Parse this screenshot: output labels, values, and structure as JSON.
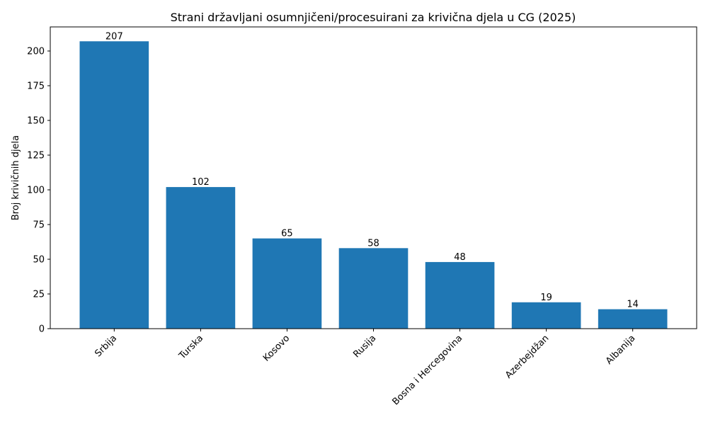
{
  "chart_data": {
    "type": "bar",
    "title": "Strani državljani osumnjičeni/procesuirani za krivična djela u CG (2025)",
    "xlabel": "",
    "ylabel": "Broj krivičnih djela",
    "categories": [
      "Srbija",
      "Turska",
      "Kosovo",
      "Rusija",
      "Bosna i Hercegovina",
      "Azerbejdžan",
      "Albanija"
    ],
    "values": [
      207,
      102,
      65,
      58,
      48,
      19,
      14
    ],
    "data_labels": [
      "207",
      "102",
      "65",
      "58",
      "48",
      "19",
      "14"
    ],
    "ylim": [
      0,
      217.35
    ],
    "yticks": [
      0,
      25,
      50,
      75,
      100,
      125,
      150,
      175,
      200
    ],
    "ytick_labels": [
      "0",
      "25",
      "50",
      "75",
      "100",
      "125",
      "150",
      "175",
      "200"
    ],
    "grid": false,
    "bar_color": "#1f77b4",
    "xtick_rotation_deg": 45
  }
}
